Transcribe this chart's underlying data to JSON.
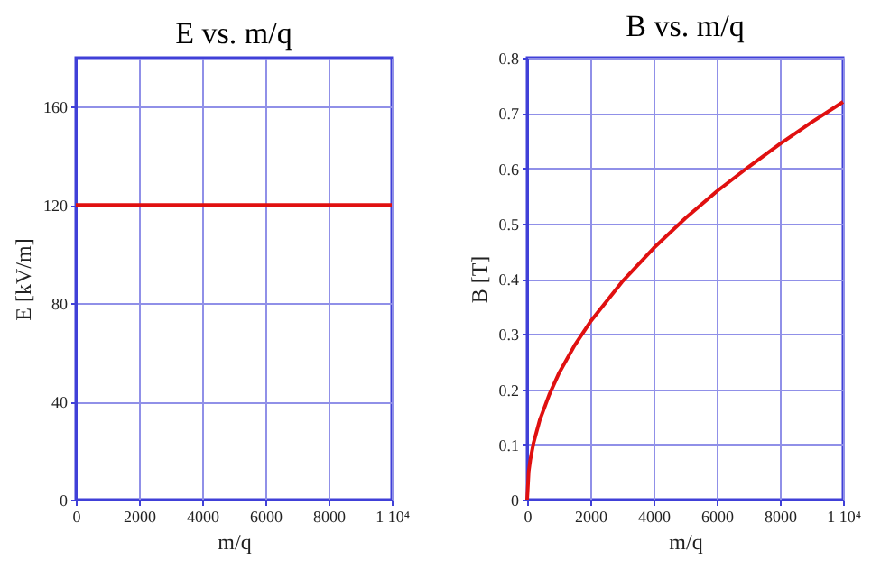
{
  "chart_data": [
    {
      "type": "line",
      "title": "E vs. m/q",
      "xlabel": "m/q",
      "ylabel": "E [kV/m]",
      "x": [
        0,
        10000
      ],
      "xlim": [
        0,
        10000
      ],
      "ylim": [
        0,
        180
      ],
      "xticks": [
        0,
        2000,
        4000,
        6000,
        8000,
        {
          "value": 10000,
          "label": "1 10⁴"
        }
      ],
      "yticks": [
        0,
        40,
        80,
        120,
        160
      ],
      "grid": true,
      "marker": "none",
      "line_style": "solid",
      "series": [
        {
          "color": "#e01010",
          "values": [
            120,
            120
          ]
        }
      ]
    },
    {
      "type": "line",
      "title": "B vs. m/q",
      "xlabel": "m/q",
      "ylabel": "B [T]",
      "x": [
        0,
        50,
        100,
        200,
        400,
        700,
        1000,
        1500,
        2000,
        3000,
        4000,
        5000,
        6000,
        7000,
        8000,
        9000,
        10000
      ],
      "xlim": [
        0,
        10000
      ],
      "ylim": [
        0,
        0.8
      ],
      "xticks": [
        0,
        2000,
        4000,
        6000,
        8000,
        {
          "value": 10000,
          "label": "1 10⁴"
        }
      ],
      "yticks": [
        0,
        0.1,
        0.2,
        0.3,
        0.4,
        0.5,
        0.6,
        0.7,
        0.8
      ],
      "grid": true,
      "marker": "none",
      "line_style": "solid",
      "series": [
        {
          "color": "#e01010",
          "values": [
            0,
            0.051,
            0.072,
            0.102,
            0.144,
            0.19,
            0.228,
            0.279,
            0.322,
            0.394,
            0.455,
            0.509,
            0.558,
            0.602,
            0.644,
            0.683,
            0.72
          ]
        }
      ]
    }
  ]
}
